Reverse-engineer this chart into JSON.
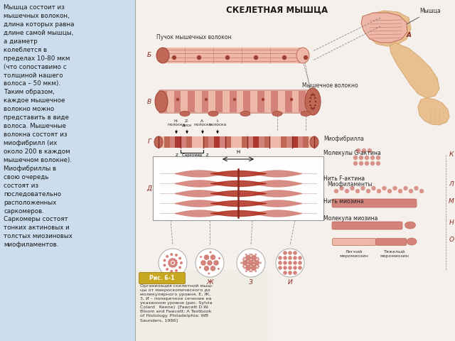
{
  "bg_color": "#f0f4f8",
  "left_bg": "#ccdded",
  "right_bg": "#f5f0eb",
  "text_color": "#1a1a1a",
  "muscle_color": "#d4837a",
  "muscle_dark": "#a04030",
  "muscle_light": "#edb8a8",
  "muscle_mid": "#c06858",
  "stripe_color": "#8a2820",
  "fig_label_color": "#8a2820",
  "arm_skin": "#e8c090",
  "arm_skin2": "#d4a870",
  "title": "СКЕЛЕТНАЯ МЫШЦА",
  "left_text": "Мышца состоит из\nмышечных волокон,\nдлина которых равна\nдлине самой мышцы,\nа диаметр\nколеблется в\nпределах 10-80 мкм\n(что сопоставимо с\nтолщиной нашего\nволоса – 50 мкм).\nТаким образом,\nкаждое мышечное\nволокно можно\nпредставить в виде\nволоса. Мышечные\nволокна состоят из\nмиофибрилл (их\nоколо 200 в каждом\nмышечном волокне).\nМиофибриллы в\nсвою очередь\nсостоят из\nпоследовательно\nрасположенных\nсаркомеров.\nСаркомеры состоят\nтонких актиновых и\nтолстых миозиновых\nмиофиламентов.",
  "caption_text": "Организация скелетной мыш-\nцы от макроскопического до\nмолекулярного уровня. Е, Ж,\n3, И – поперечное сечение на\nуказанном уровне (рис. Sylvia\nColard   Keene)  [Fawcett D.W.\nBloom and Fawcett: A Textbook\nof Histology. Philadelphia: WB\nSaunders, 1986]",
  "fig_ref": "Рис. 6–1"
}
